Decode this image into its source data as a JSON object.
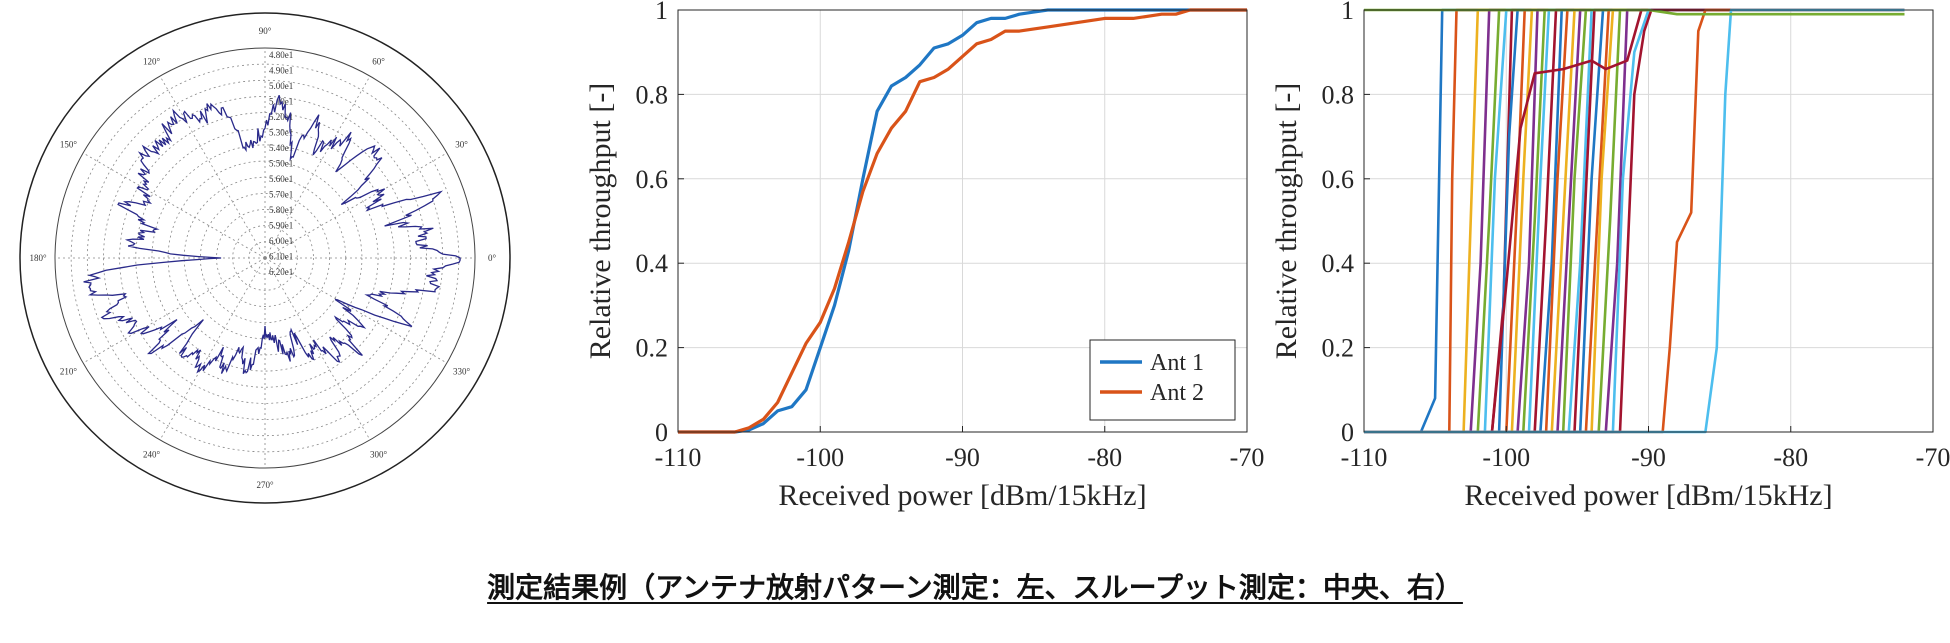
{
  "caption": "測定結果例（アンテナ放射パターン測定：左、スループット測定：中央、右）",
  "colors": {
    "ant1": "#1f77c4",
    "ant2": "#d95319",
    "polar_line": "#2a2a8a",
    "grid": "#d9d9d9"
  },
  "chart_data": [
    {
      "type": "polar",
      "angle_labels": [
        "0°",
        "30°",
        "60°",
        "90°",
        "120°",
        "150°",
        "180°",
        "210°",
        "240°",
        "270°",
        "300°",
        "330°"
      ],
      "radial_labels": [
        "4.80e1",
        "4.90e1",
        "5.00e1",
        "5.10e1",
        "5.20e1",
        "5.30e1",
        "5.40e1",
        "5.50e1",
        "5.60e1",
        "5.70e1",
        "5.80e1",
        "5.90e1",
        "6.00e1",
        "6.10e1",
        "6.20e1"
      ],
      "series": [
        {
          "values_deg_radius": [
            [
              0,
              0.93
            ],
            [
              5,
              0.72
            ],
            [
              10,
              0.8
            ],
            [
              15,
              0.62
            ],
            [
              20,
              0.9
            ],
            [
              25,
              0.55
            ],
            [
              30,
              0.65
            ],
            [
              35,
              0.48
            ],
            [
              40,
              0.7
            ],
            [
              45,
              0.75
            ],
            [
              50,
              0.55
            ],
            [
              55,
              0.7
            ],
            [
              60,
              0.62
            ],
            [
              65,
              0.58
            ],
            [
              70,
              0.72
            ],
            [
              75,
              0.5
            ],
            [
              80,
              0.68
            ],
            [
              85,
              0.78
            ],
            [
              90,
              0.6
            ],
            [
              95,
              0.58
            ],
            [
              100,
              0.52
            ],
            [
              105,
              0.7
            ],
            [
              110,
              0.75
            ],
            [
              115,
              0.72
            ],
            [
              120,
              0.78
            ],
            [
              125,
              0.8
            ],
            [
              130,
              0.74
            ],
            [
              135,
              0.73
            ],
            [
              140,
              0.78
            ],
            [
              145,
              0.7
            ],
            [
              150,
              0.68
            ],
            [
              155,
              0.62
            ],
            [
              160,
              0.72
            ],
            [
              165,
              0.55
            ],
            [
              170,
              0.6
            ],
            [
              175,
              0.65
            ],
            [
              180,
              0.2
            ],
            [
              185,
              0.8
            ],
            [
              190,
              0.88
            ],
            [
              195,
              0.7
            ],
            [
              200,
              0.82
            ],
            [
              205,
              0.72
            ],
            [
              210,
              0.7
            ],
            [
              215,
              0.55
            ],
            [
              220,
              0.7
            ],
            [
              225,
              0.45
            ],
            [
              230,
              0.65
            ],
            [
              235,
              0.55
            ],
            [
              240,
              0.62
            ],
            [
              245,
              0.5
            ],
            [
              250,
              0.58
            ],
            [
              255,
              0.45
            ],
            [
              260,
              0.55
            ],
            [
              265,
              0.45
            ],
            [
              270,
              0.35
            ],
            [
              275,
              0.4
            ],
            [
              280,
              0.42
            ],
            [
              285,
              0.5
            ],
            [
              290,
              0.38
            ],
            [
              295,
              0.55
            ],
            [
              300,
              0.45
            ],
            [
              305,
              0.6
            ],
            [
              310,
              0.5
            ],
            [
              315,
              0.62
            ],
            [
              320,
              0.45
            ],
            [
              325,
              0.55
            ],
            [
              330,
              0.4
            ],
            [
              335,
              0.8
            ],
            [
              340,
              0.55
            ],
            [
              345,
              0.62
            ],
            [
              350,
              0.85
            ],
            [
              355,
              0.78
            ]
          ]
        }
      ]
    },
    {
      "type": "line",
      "xlabel": "Received power [dBm/15kHz]",
      "ylabel": "Relative throughput [-]",
      "xlim": [
        -110,
        -70
      ],
      "ylim": [
        0,
        1
      ],
      "xticks": [
        -110,
        -100,
        -90,
        -80,
        -70
      ],
      "yticks": [
        0,
        0.2,
        0.4,
        0.6,
        0.8,
        1
      ],
      "legend_position": "bottom-right",
      "grid": true,
      "series": [
        {
          "name": "Ant 1",
          "color": "#1f77c4",
          "x": [
            -110,
            -106,
            -105,
            -104,
            -103,
            -102,
            -101,
            -100,
            -99,
            -98,
            -97,
            -96,
            -95,
            -94,
            -93,
            -92,
            -91,
            -90,
            -89,
            -88,
            -87,
            -86,
            -85,
            -84,
            -80,
            -70
          ],
          "y": [
            0,
            0,
            0.005,
            0.02,
            0.05,
            0.06,
            0.1,
            0.2,
            0.3,
            0.43,
            0.6,
            0.76,
            0.82,
            0.84,
            0.87,
            0.91,
            0.92,
            0.94,
            0.97,
            0.98,
            0.98,
            0.99,
            0.995,
            1,
            1,
            1
          ]
        },
        {
          "name": "Ant 2",
          "color": "#d95319",
          "x": [
            -110,
            -106,
            -105,
            -104,
            -103,
            -102,
            -101,
            -100,
            -99,
            -98,
            -97,
            -96,
            -95,
            -94,
            -93,
            -92,
            -91,
            -90,
            -89,
            -88,
            -87,
            -86,
            -84,
            -82,
            -80,
            -78,
            -76,
            -75,
            -74,
            -70
          ],
          "y": [
            0,
            0,
            0.01,
            0.03,
            0.07,
            0.14,
            0.21,
            0.26,
            0.34,
            0.45,
            0.57,
            0.66,
            0.72,
            0.76,
            0.83,
            0.84,
            0.86,
            0.89,
            0.92,
            0.93,
            0.95,
            0.95,
            0.96,
            0.97,
            0.98,
            0.98,
            0.99,
            0.99,
            1,
            1
          ]
        }
      ]
    },
    {
      "type": "line",
      "xlabel": "Received power [dBm/15kHz]",
      "ylabel": "Relative throughput [-]",
      "xlim": [
        -110,
        -70
      ],
      "ylim": [
        0,
        1
      ],
      "xticks": [
        -110,
        -100,
        -90,
        -80,
        -70
      ],
      "yticks": [
        0,
        0.2,
        0.4,
        0.6,
        0.8,
        1
      ],
      "grid": true,
      "series": [
        {
          "color": "#1f77c4",
          "x": [
            -110,
            -106,
            -105,
            -104.5,
            -104,
            -72
          ],
          "y": [
            0,
            0,
            0.08,
            1,
            1,
            1
          ]
        },
        {
          "color": "#d95319",
          "x": [
            -110,
            -104,
            -103.8,
            -103.5,
            -72
          ],
          "y": [
            0,
            0,
            0.6,
            1,
            1
          ]
        },
        {
          "color": "#edb120",
          "x": [
            -110,
            -103,
            -102.5,
            -102,
            -72
          ],
          "y": [
            0,
            0,
            0.5,
            1,
            1
          ]
        },
        {
          "color": "#7e2f8e",
          "x": [
            -110,
            -102.5,
            -101.8,
            -101.2,
            -72
          ],
          "y": [
            0,
            0,
            0.4,
            1,
            1
          ]
        },
        {
          "color": "#77ac30",
          "x": [
            -110,
            -102,
            -101.2,
            -100.5,
            -72
          ],
          "y": [
            0,
            0,
            0.5,
            1,
            1
          ]
        },
        {
          "color": "#4dbeee",
          "x": [
            -110,
            -101.5,
            -100.8,
            -100,
            -72
          ],
          "y": [
            0,
            0,
            0.6,
            1,
            1
          ]
        },
        {
          "color": "#a2142f",
          "x": [
            -110,
            -101,
            -100.2,
            -99.6,
            -72
          ],
          "y": [
            0,
            0,
            0.3,
            1,
            1
          ]
        },
        {
          "color": "#1f77c4",
          "x": [
            -110,
            -100.5,
            -99.8,
            -99.2,
            -72
          ],
          "y": [
            0,
            0,
            0.7,
            1,
            1
          ]
        },
        {
          "color": "#d95319",
          "x": [
            -110,
            -100,
            -99.3,
            -98.7,
            -72
          ],
          "y": [
            0,
            0,
            0.5,
            1,
            1
          ]
        },
        {
          "color": "#edb120",
          "x": [
            -110,
            -99.6,
            -98.8,
            -98.2,
            -72
          ],
          "y": [
            0,
            0,
            0.6,
            1,
            1
          ]
        },
        {
          "color": "#7e2f8e",
          "x": [
            -110,
            -99.2,
            -98.4,
            -97.8,
            -72
          ],
          "y": [
            0,
            0,
            0.4,
            1,
            1
          ]
        },
        {
          "color": "#77ac30",
          "x": [
            -110,
            -98.8,
            -98,
            -97.3,
            -72
          ],
          "y": [
            0,
            0,
            0.5,
            1,
            1
          ]
        },
        {
          "color": "#4dbeee",
          "x": [
            -110,
            -98.4,
            -97.6,
            -97,
            -72
          ],
          "y": [
            0,
            0,
            0.6,
            1,
            1
          ]
        },
        {
          "color": "#a2142f",
          "x": [
            -110,
            -98,
            -97.2,
            -96.5,
            -72
          ],
          "y": [
            0,
            0,
            0.5,
            1,
            1
          ]
        },
        {
          "color": "#1f77c4",
          "x": [
            -110,
            -97.6,
            -96.8,
            -96.1,
            -72
          ],
          "y": [
            0,
            0,
            0.4,
            1,
            1
          ]
        },
        {
          "color": "#d95319",
          "x": [
            -110,
            -97.2,
            -96.4,
            -95.7,
            -72
          ],
          "y": [
            0,
            0,
            0.6,
            1,
            1
          ]
        },
        {
          "color": "#edb120",
          "x": [
            -110,
            -96.8,
            -96,
            -95.2,
            -72
          ],
          "y": [
            0,
            0,
            0.5,
            1,
            1
          ]
        },
        {
          "color": "#7e2f8e",
          "x": [
            -110,
            -96.4,
            -95.6,
            -94.8,
            -72
          ],
          "y": [
            0,
            0,
            0.5,
            1,
            1
          ]
        },
        {
          "color": "#77ac30",
          "x": [
            -110,
            -96,
            -95.2,
            -94.4,
            -72
          ],
          "y": [
            0,
            0,
            0.6,
            1,
            1
          ]
        },
        {
          "color": "#4dbeee",
          "x": [
            -110,
            -95.6,
            -94.8,
            -94,
            -72
          ],
          "y": [
            0,
            0,
            0.4,
            1,
            1
          ]
        },
        {
          "color": "#a2142f",
          "x": [
            -110,
            -95.2,
            -94.5,
            -93.8,
            -72
          ],
          "y": [
            0,
            0,
            0.5,
            1,
            1
          ]
        },
        {
          "color": "#1f77c4",
          "x": [
            -110,
            -94.8,
            -94,
            -93.2,
            -72
          ],
          "y": [
            0,
            0,
            0.6,
            1,
            1
          ]
        },
        {
          "color": "#d95319",
          "x": [
            -110,
            -94.4,
            -93.6,
            -92.8,
            -72
          ],
          "y": [
            0,
            0,
            0.5,
            1,
            1
          ]
        },
        {
          "color": "#edb120",
          "x": [
            -110,
            -94,
            -93.3,
            -92.5,
            -72
          ],
          "y": [
            0,
            0,
            0.6,
            1,
            1
          ]
        },
        {
          "color": "#77ac30",
          "x": [
            -110,
            -93.5,
            -92.7,
            -92,
            -72
          ],
          "y": [
            0,
            0,
            0.5,
            1,
            1
          ]
        },
        {
          "color": "#7e2f8e",
          "x": [
            -110,
            -93,
            -92.2,
            -91.5,
            -72
          ],
          "y": [
            0,
            0,
            0.4,
            1,
            1
          ]
        },
        {
          "color": "#a2142f",
          "x": [
            -110,
            -101,
            -100,
            -99,
            -98,
            -96,
            -94,
            -93,
            -91.5,
            -90.5,
            -72
          ],
          "y": [
            0,
            0,
            0.35,
            0.72,
            0.85,
            0.86,
            0.88,
            0.86,
            0.88,
            1,
            1
          ]
        },
        {
          "color": "#4dbeee",
          "x": [
            -110,
            -92.5,
            -91.8,
            -91,
            -90,
            -72
          ],
          "y": [
            0,
            0,
            0.6,
            0.9,
            1,
            1
          ]
        },
        {
          "color": "#a2142f",
          "x": [
            -110,
            -92,
            -91,
            -90.3,
            -89.8,
            -72
          ],
          "y": [
            0,
            0,
            0.8,
            0.95,
            1,
            1
          ]
        },
        {
          "color": "#d95319",
          "x": [
            -110,
            -89,
            -88.5,
            -88,
            -87,
            -86.5,
            -86,
            -72
          ],
          "y": [
            0,
            0,
            0.2,
            0.45,
            0.52,
            0.95,
            1,
            1
          ]
        },
        {
          "color": "#4dbeee",
          "x": [
            -110,
            -86,
            -85.2,
            -84.6,
            -84.2,
            -72
          ],
          "y": [
            0,
            0,
            0.2,
            0.8,
            1,
            1
          ]
        },
        {
          "color": "#77ac30",
          "x": [
            -110,
            -90,
            -88,
            -72
          ],
          "y": [
            1,
            1,
            0.99,
            0.99
          ]
        }
      ]
    }
  ]
}
